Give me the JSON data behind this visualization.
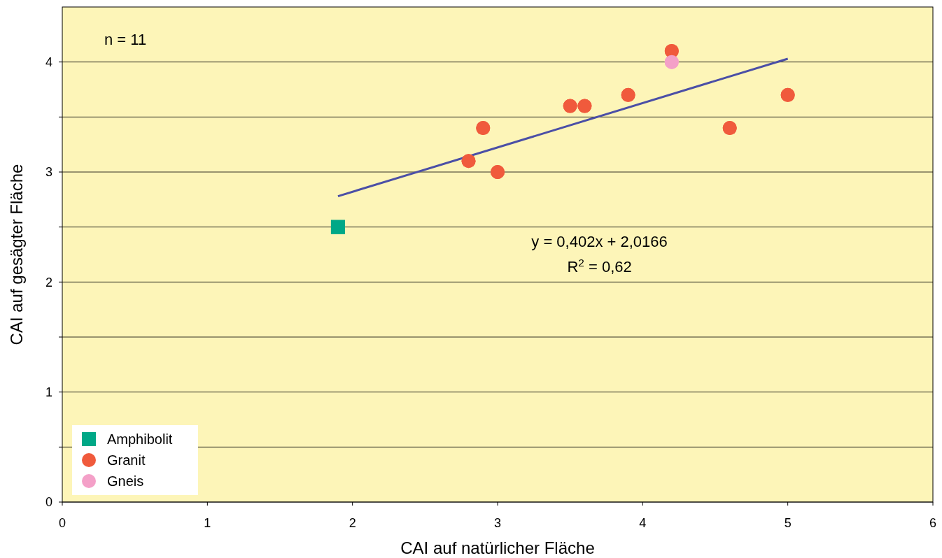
{
  "chart_data": {
    "type": "scatter",
    "xlabel": "CAI auf natürlicher Fläche",
    "ylabel": "CAI auf gesägter Fläche",
    "xlim": [
      0,
      6
    ],
    "xticks": [
      0,
      1,
      2,
      3,
      4,
      5,
      6
    ],
    "ylim": [
      0,
      4.5
    ],
    "yticks": [
      0,
      {
        "value": 0.5,
        "label": null
      },
      1,
      {
        "value": 1.5,
        "label": null
      },
      2,
      {
        "value": 2.5,
        "label": null
      },
      3,
      {
        "value": 3.5,
        "label": null
      },
      4
    ],
    "grid": "y",
    "legend": "bottom left",
    "series": [
      {
        "name": "Amphibolit",
        "color": "#00a887",
        "marker": "square",
        "x": [
          1.9
        ],
        "values": [
          2.5
        ]
      },
      {
        "name": "Granit",
        "color": "#f05a3c",
        "marker": "circle",
        "x": [
          2.8,
          2.9,
          3.0,
          3.5,
          3.6,
          3.9,
          4.2,
          4.6,
          5.0
        ],
        "values": [
          3.1,
          3.4,
          3.0,
          3.6,
          3.6,
          3.7,
          4.1,
          3.4,
          3.7
        ]
      },
      {
        "name": "Gneis",
        "color": "#f4a0c8",
        "marker": "circle",
        "x": [
          4.2
        ],
        "values": [
          4.0
        ]
      },
      {
        "type": "line",
        "color": "#4b4fa6",
        "x": [
          1.9,
          5.0
        ],
        "values": [
          2.78,
          4.03
        ]
      }
    ],
    "annotations": [
      "n = 11",
      "y = 0,402x + 2,0166",
      "R$^{2}$ = 0,62"
    ]
  }
}
